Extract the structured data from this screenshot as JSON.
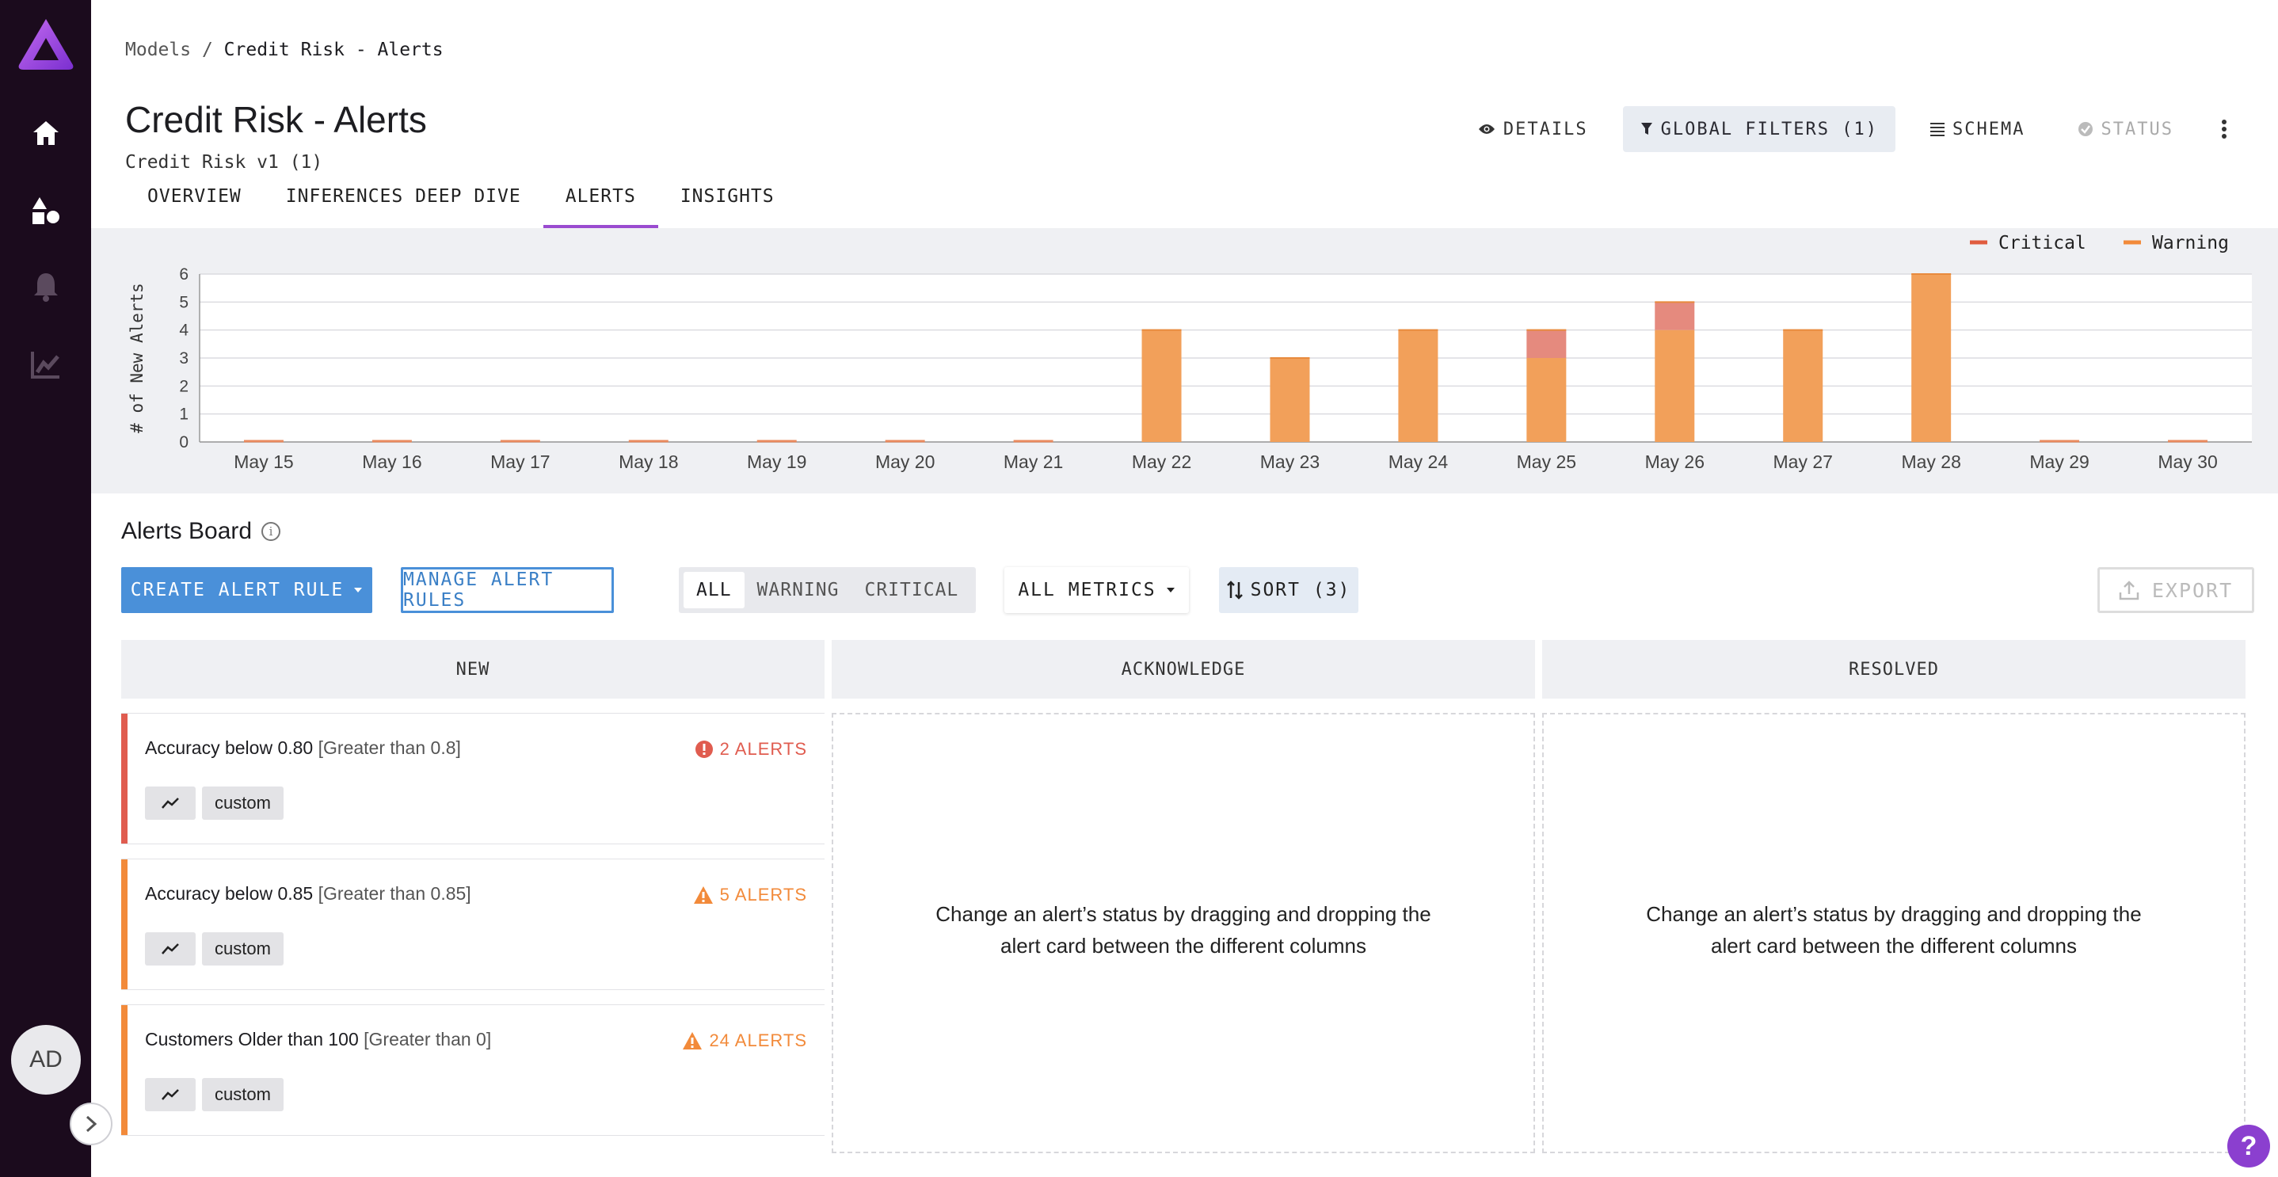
{
  "sidebar": {
    "logo": "app-logo",
    "nav": [
      {
        "icon": "home-icon"
      },
      {
        "icon": "models-icon"
      },
      {
        "icon": "bell-icon"
      },
      {
        "icon": "insights-icon"
      }
    ],
    "avatar_initials": "AD"
  },
  "breadcrumb": {
    "root": "Models",
    "separator": "/",
    "current": "Credit Risk - Alerts"
  },
  "page": {
    "title": "Credit Risk - Alerts",
    "subtitle": "Credit Risk v1 (1)"
  },
  "tabs": [
    {
      "label": "OVERVIEW",
      "active": false
    },
    {
      "label": "INFERENCES DEEP DIVE",
      "active": false
    },
    {
      "label": "ALERTS",
      "active": true
    },
    {
      "label": "INSIGHTS",
      "active": false
    }
  ],
  "header_actions": {
    "details": "DETAILS",
    "global_filters": "GLOBAL FILTERS (1)",
    "schema": "SCHEMA",
    "status": "STATUS"
  },
  "chart_data": {
    "type": "bar",
    "stacked": true,
    "ylabel": "# of New Alerts",
    "ylim": [
      0,
      6
    ],
    "yticks": [
      0,
      1,
      2,
      3,
      4,
      5,
      6
    ],
    "categories": [
      "May 15",
      "May 16",
      "May 17",
      "May 18",
      "May 19",
      "May 20",
      "May 21",
      "May 22",
      "May 23",
      "May 24",
      "May 25",
      "May 26",
      "May 27",
      "May 28",
      "May 29",
      "May 30"
    ],
    "series": [
      {
        "name": "Warning",
        "color": "#f2a05a",
        "values": [
          0,
          0,
          0,
          0,
          0,
          0,
          0,
          4,
          3,
          4,
          3,
          4,
          4,
          6,
          0,
          0
        ]
      },
      {
        "name": "Critical",
        "color": "#e58a7e",
        "values": [
          0,
          0,
          0,
          0,
          0,
          0,
          0,
          0,
          0,
          0,
          1,
          1,
          0,
          0,
          0,
          0
        ]
      }
    ],
    "legend": [
      "Critical",
      "Warning"
    ],
    "legend_colors": {
      "Critical": "#e05c3f",
      "Warning": "#f28a3a"
    },
    "legend_position": "top-right",
    "grid": true
  },
  "board": {
    "title": "Alerts Board",
    "create_label": "CREATE ALERT RULE",
    "manage_label": "MANAGE ALERT RULES",
    "filters": [
      "ALL",
      "WARNING",
      "CRITICAL"
    ],
    "active_filter": "ALL",
    "metrics_label": "ALL METRICS",
    "sort_label": "SORT (3)",
    "export_label": "EXPORT",
    "columns": [
      {
        "label": "NEW"
      },
      {
        "label": "ACKNOWLEDGE",
        "empty_message": "Change an alert’s status by dragging and dropping the alert card between the different columns"
      },
      {
        "label": "RESOLVED",
        "empty_message": "Change an alert’s status by dragging and dropping the alert card between the different columns"
      }
    ],
    "cards": [
      {
        "name": "Accuracy below 0.80",
        "condition": "[Greater than 0.8]",
        "count": "2 ALERTS",
        "severity": "critical",
        "color": "#e05c4f",
        "tag_icon": "trend-icon",
        "tag": "custom"
      },
      {
        "name": "Accuracy below 0.85",
        "condition": "[Greater than 0.85]",
        "count": "5 ALERTS",
        "severity": "warning",
        "color": "#f28a3a",
        "tag_icon": "trend-icon",
        "tag": "custom"
      },
      {
        "name": "Customers Older than 100",
        "condition": "[Greater than 0]",
        "count": "24 ALERTS",
        "severity": "warning",
        "color": "#f28a3a",
        "tag_icon": "trend-icon",
        "tag": "custom"
      }
    ]
  }
}
